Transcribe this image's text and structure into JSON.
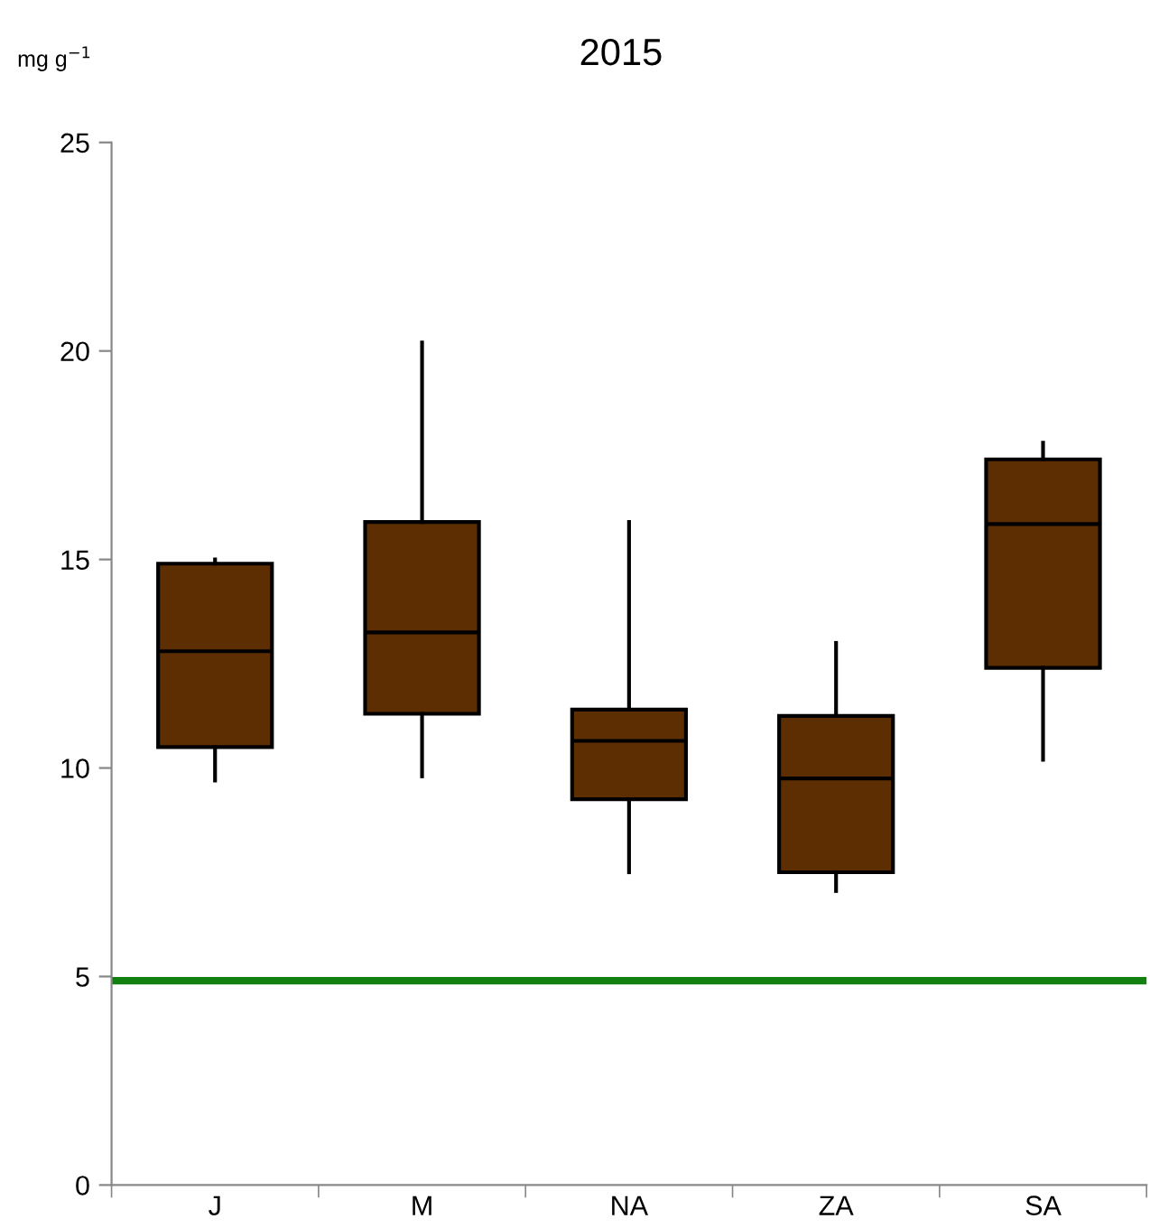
{
  "chart_data": {
    "type": "box",
    "title": "2015",
    "ylabel": "mg g$^{−1}$",
    "categories": [
      "J",
      "M",
      "NA",
      "ZA",
      "SA"
    ],
    "boxes": [
      {
        "low": 9.7,
        "q1": 10.5,
        "median": 12.8,
        "q3": 14.9,
        "high": 15.0
      },
      {
        "low": 9.8,
        "q1": 11.3,
        "median": 13.25,
        "q3": 15.9,
        "high": 20.2
      },
      {
        "low": 7.5,
        "q1": 9.25,
        "median": 10.65,
        "q3": 11.4,
        "high": 15.9
      },
      {
        "low": 7.05,
        "q1": 7.5,
        "median": 9.75,
        "q3": 11.25,
        "high": 13.0
      },
      {
        "low": 10.2,
        "q1": 12.4,
        "median": 15.85,
        "q3": 17.4,
        "high": 17.8
      }
    ],
    "color": "#5c2e02",
    "ylim": [
      0,
      25
    ],
    "yticks": [
      0,
      5,
      10,
      15,
      20,
      25
    ],
    "ref_lines": [
      {
        "axis": "y",
        "value": 4.9,
        "color": "#118011",
        "line_style": "solid"
      }
    ],
    "grid": false,
    "legend": false
  }
}
